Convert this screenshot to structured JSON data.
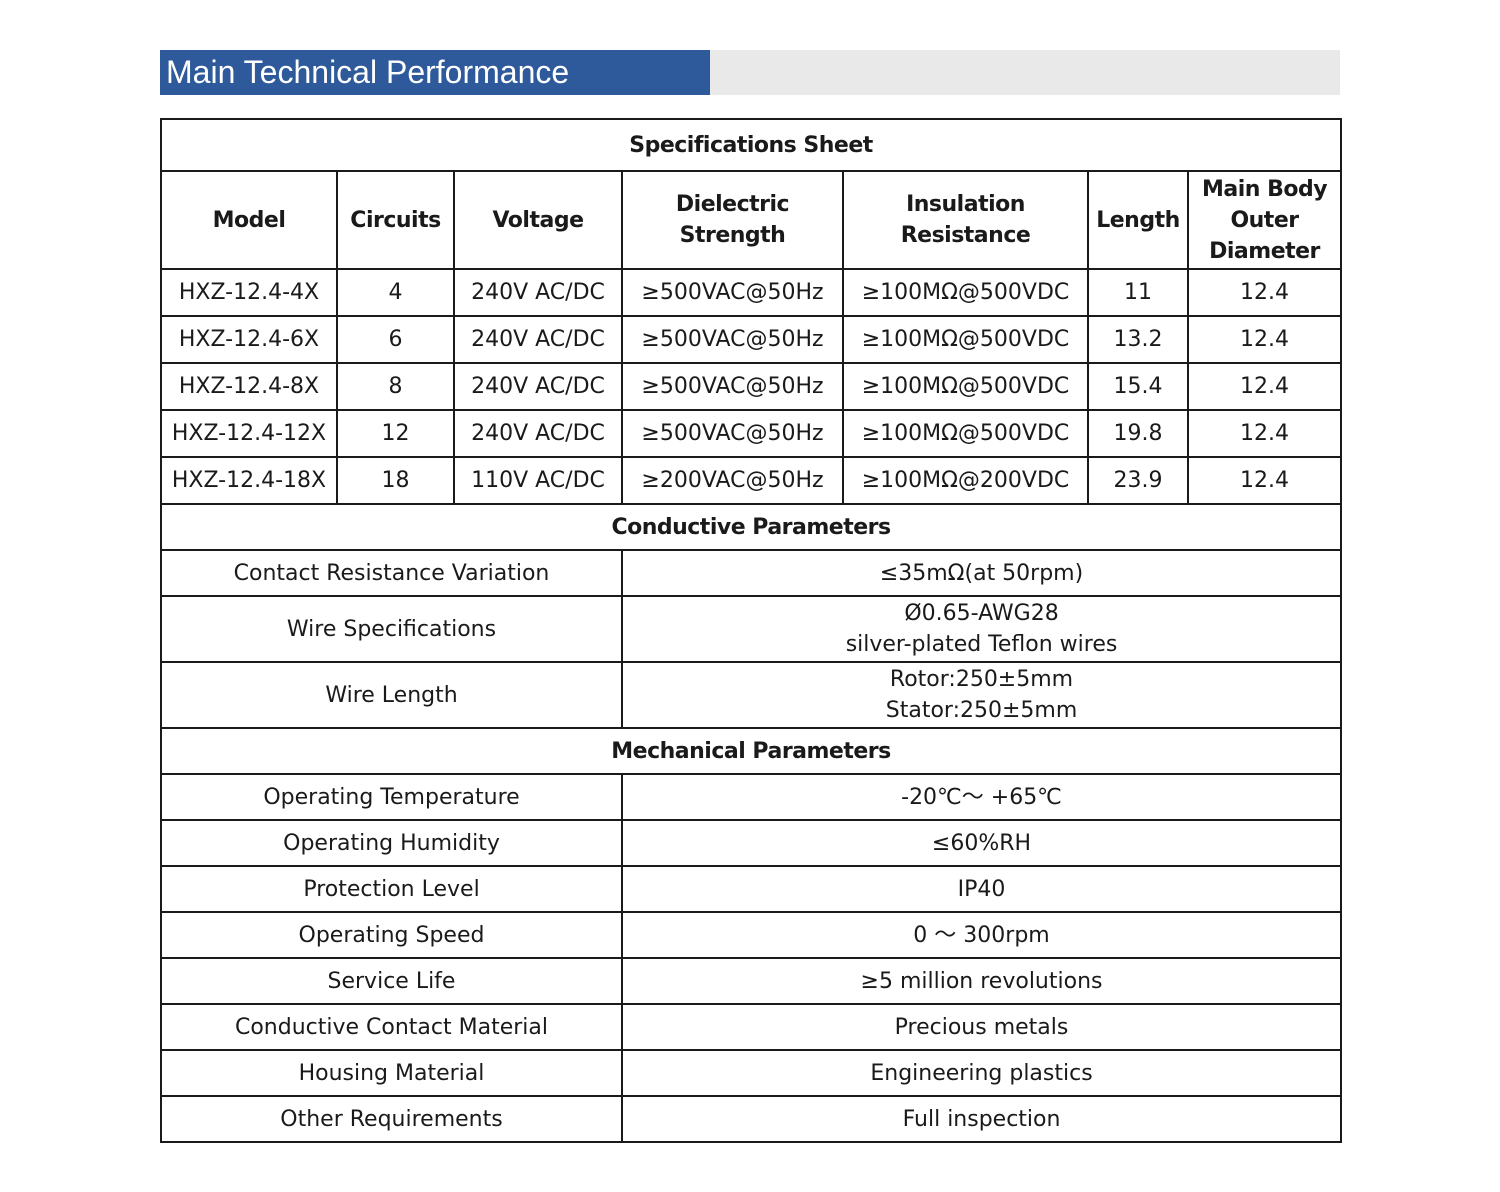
{
  "banner": {
    "title": "Main Technical Performance"
  },
  "spec_sheet": {
    "title": "Specifications Sheet",
    "columns": [
      "Model",
      "Circuits",
      "Voltage",
      "Dielectric Strength",
      "Insulation Resistance",
      "Length"
    ],
    "last_column": [
      "Main Body",
      "Outer",
      "Diameter"
    ],
    "rows": [
      [
        "HXZ-12.4-4X",
        "4",
        "240V AC/DC",
        "≥500VAC@50Hz",
        "≥100MΩ@500VDC",
        "11",
        "12.4"
      ],
      [
        "HXZ-12.4-6X",
        "6",
        "240V AC/DC",
        "≥500VAC@50Hz",
        "≥100MΩ@500VDC",
        "13.2",
        "12.4"
      ],
      [
        "HXZ-12.4-8X",
        "8",
        "240V AC/DC",
        "≥500VAC@50Hz",
        "≥100MΩ@500VDC",
        "15.4",
        "12.4"
      ],
      [
        "HXZ-12.4-12X",
        "12",
        "240V AC/DC",
        "≥500VAC@50Hz",
        "≥100MΩ@500VDC",
        "19.8",
        "12.4"
      ],
      [
        "HXZ-12.4-18X",
        "18",
        "110V AC/DC",
        "≥200VAC@50Hz",
        "≥100MΩ@200VDC",
        "23.9",
        "12.4"
      ]
    ]
  },
  "conductive": {
    "title": "Conductive Parameters",
    "contact_resistance": {
      "label": "Contact Resistance Variation",
      "value": "≤35mΩ(at 50rpm)"
    },
    "wire_specs": {
      "label": "Wire Specifications",
      "value_line1": "Ø0.65-AWG28",
      "value_line2": "silver-plated Teflon wires"
    },
    "wire_length": {
      "label": "Wire Length",
      "value_line1": "Rotor:250±5mm",
      "value_line2": "Stator:250±5mm"
    }
  },
  "mechanical": {
    "title": "Mechanical Parameters",
    "rows": [
      {
        "label": "Operating Temperature",
        "value": "-20℃～ +65℃"
      },
      {
        "label": "Operating Humidity",
        "value": "≤60%RH"
      },
      {
        "label": "Protection Level",
        "value": "IP40"
      },
      {
        "label": "Operating Speed",
        "value": "0 ～ 300rpm"
      },
      {
        "label": "Service Life",
        "value": "≥5 million revolutions"
      },
      {
        "label": "Conductive Contact Material",
        "value": "Precious metals"
      },
      {
        "label": "Housing Material",
        "value": "Engineering plastics"
      },
      {
        "label": "Other Requirements",
        "value": "Full inspection"
      }
    ]
  }
}
